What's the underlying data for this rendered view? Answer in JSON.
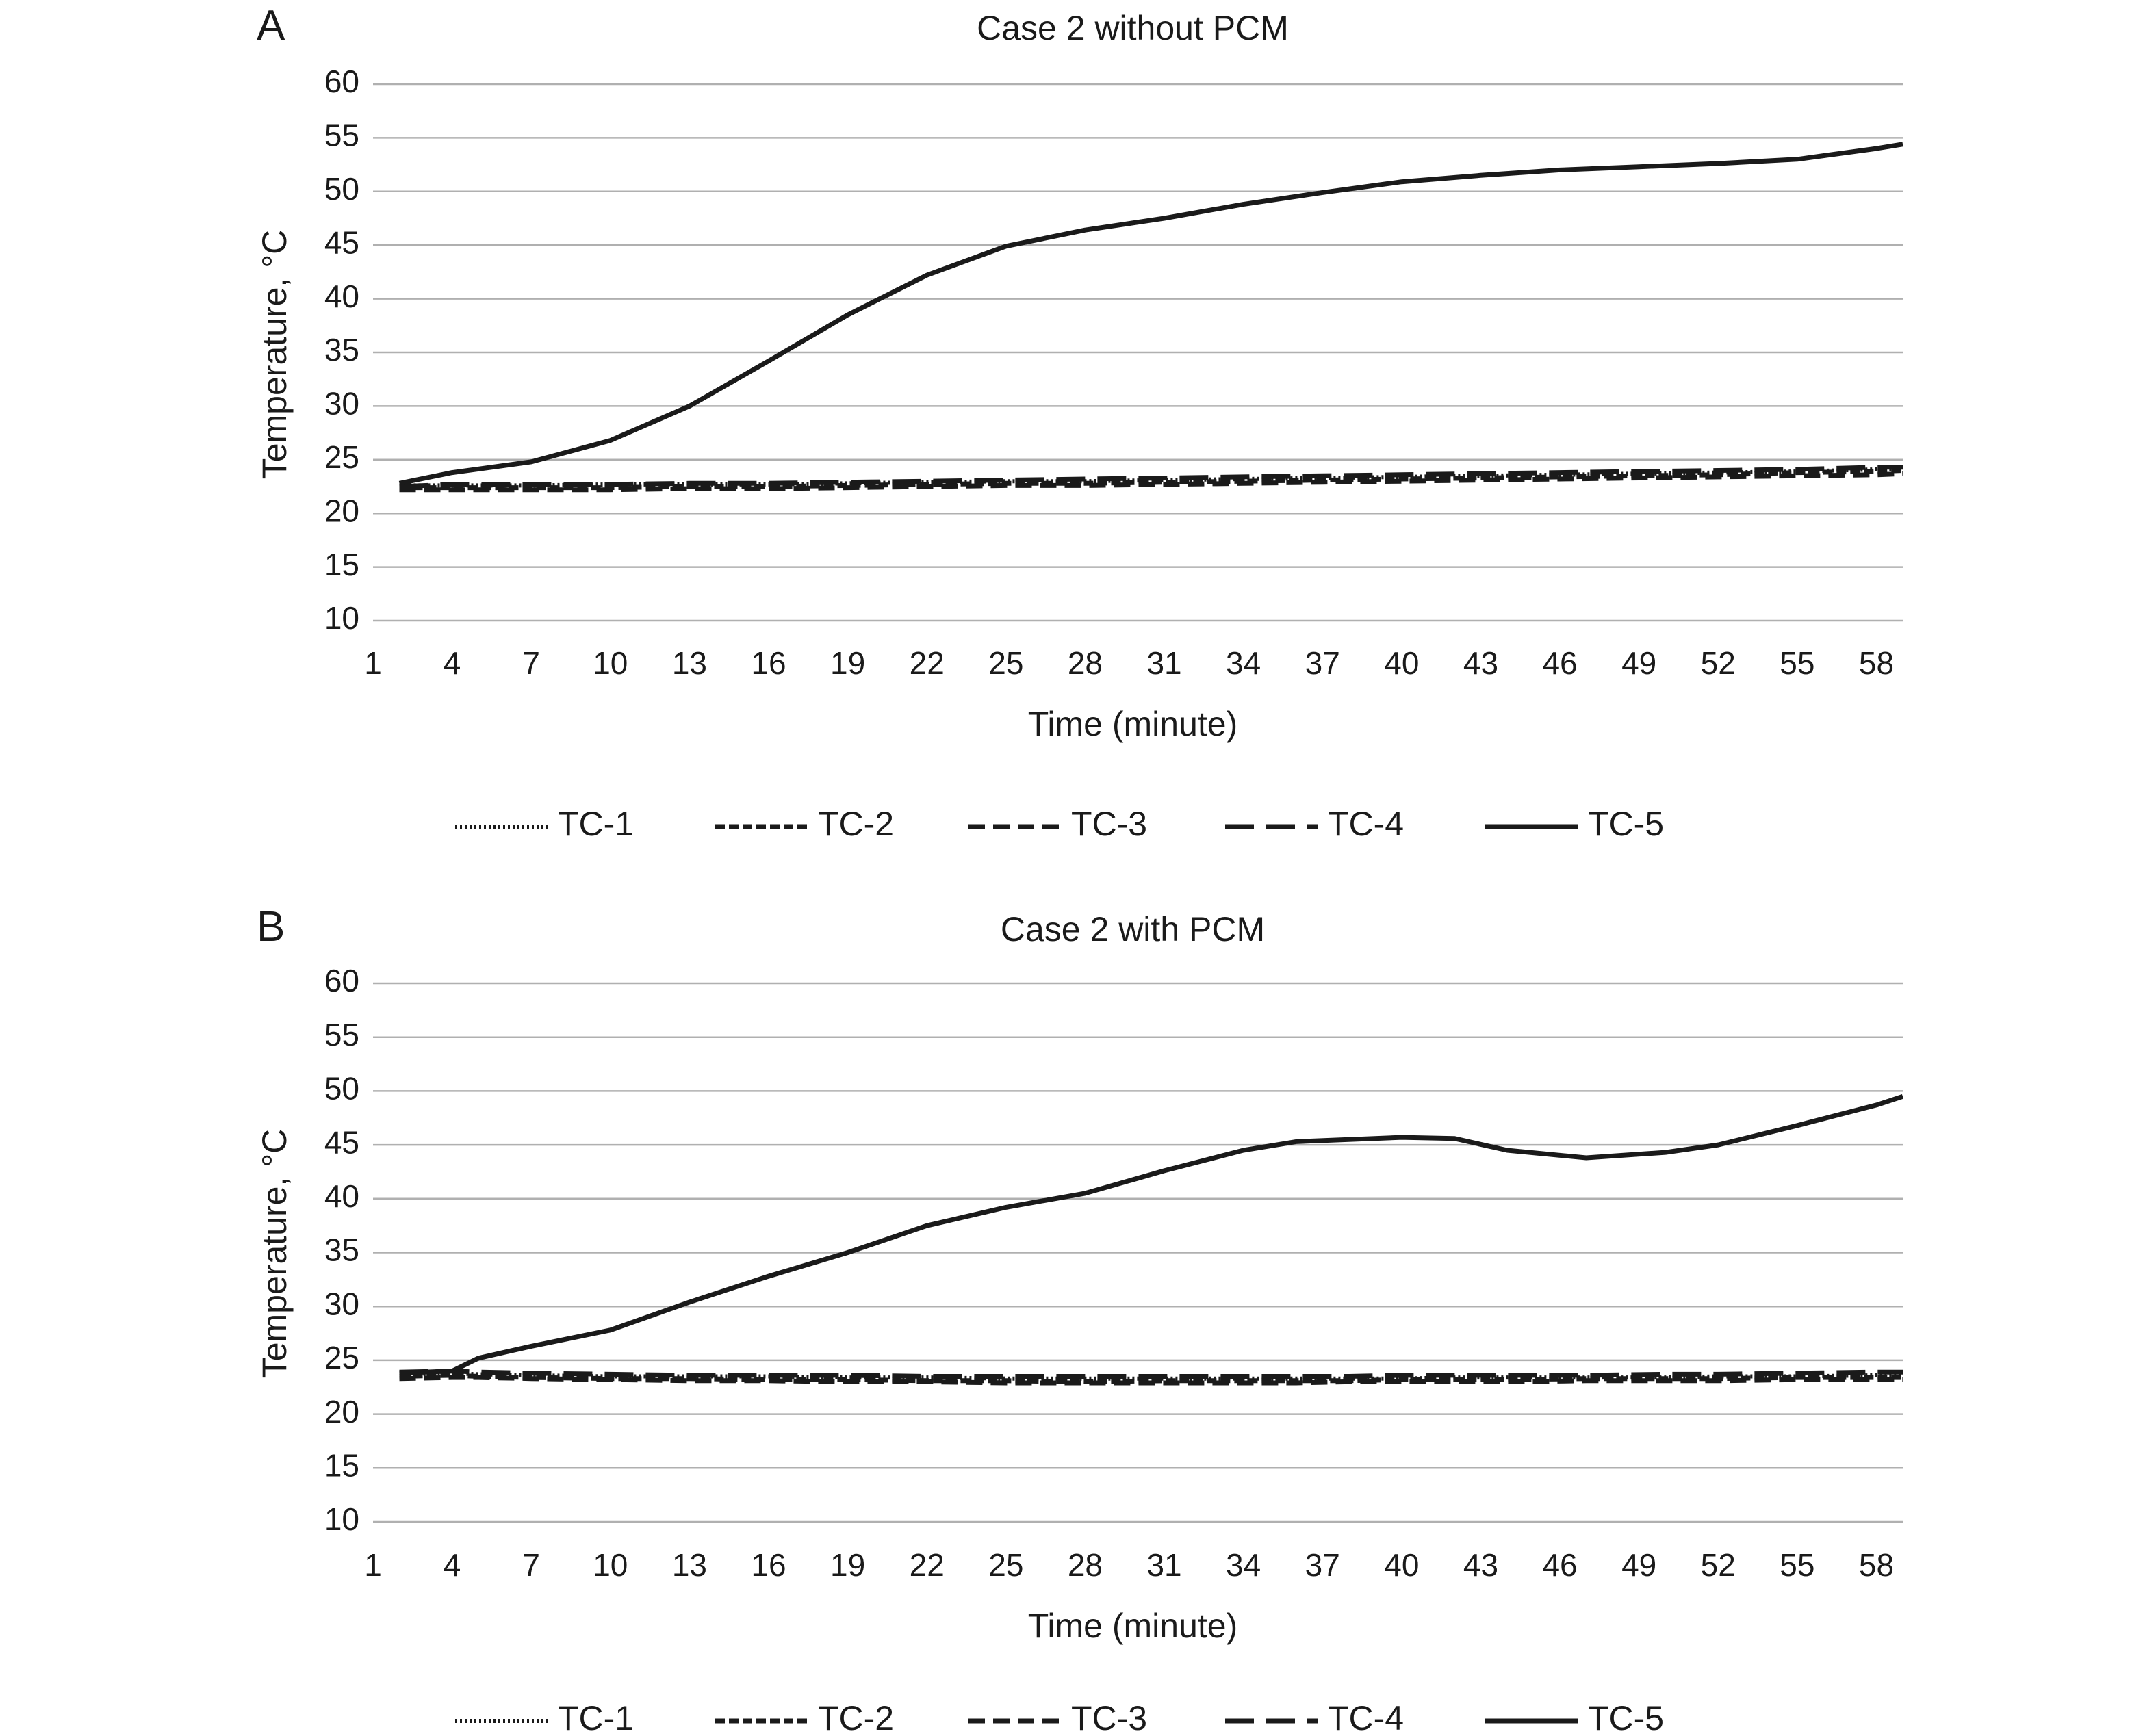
{
  "chart_data": [
    {
      "type": "line",
      "panel_label": "A",
      "title": "Case 2 without PCM",
      "xlabel": "Time (minute)",
      "ylabel": "Temperature, °C",
      "xlim": [
        1,
        59
      ],
      "ylim": [
        10,
        60
      ],
      "x_ticks": [
        1,
        4,
        7,
        10,
        13,
        16,
        19,
        22,
        25,
        28,
        31,
        34,
        37,
        40,
        43,
        46,
        49,
        52,
        55,
        58
      ],
      "y_ticks": [
        10,
        15,
        20,
        25,
        30,
        35,
        40,
        45,
        50,
        55,
        60
      ],
      "grid": true,
      "legend_position": "bottom",
      "x": [
        2,
        4,
        7,
        10,
        13,
        16,
        19,
        22,
        25,
        28,
        31,
        34,
        37,
        40,
        43,
        46,
        49,
        52,
        55,
        58,
        59
      ],
      "series": [
        {
          "name": "TC-1",
          "values": [
            22.6,
            22.6,
            22.6,
            22.7,
            22.7,
            22.7,
            22.8,
            22.9,
            23.0,
            23.0,
            23.1,
            23.2,
            23.3,
            23.4,
            23.5,
            23.6,
            23.7,
            23.8,
            23.9,
            24.1,
            24.1
          ]
        },
        {
          "name": "TC-2",
          "values": [
            22.4,
            22.4,
            22.4,
            22.4,
            22.5,
            22.5,
            22.6,
            22.7,
            22.8,
            22.8,
            22.9,
            23.0,
            23.1,
            23.2,
            23.3,
            23.4,
            23.5,
            23.6,
            23.8,
            23.9,
            24.0
          ]
        },
        {
          "name": "TC-3",
          "values": [
            22.2,
            22.2,
            22.2,
            22.2,
            22.3,
            22.3,
            22.4,
            22.5,
            22.6,
            22.6,
            22.7,
            22.8,
            22.9,
            23.0,
            23.1,
            23.2,
            23.3,
            23.4,
            23.5,
            23.6,
            23.7
          ]
        },
        {
          "name": "TC-4",
          "values": [
            22.5,
            22.7,
            22.7,
            22.7,
            22.8,
            22.8,
            22.9,
            23.0,
            23.1,
            23.2,
            23.3,
            23.4,
            23.5,
            23.6,
            23.7,
            23.8,
            23.9,
            24.0,
            24.1,
            24.3,
            24.3
          ]
        },
        {
          "name": "TC-5",
          "values": [
            22.8,
            23.8,
            24.8,
            26.8,
            30.0,
            34.2,
            38.5,
            42.2,
            44.9,
            46.4,
            47.5,
            48.8,
            49.9,
            50.9,
            51.5,
            52.0,
            52.3,
            52.6,
            53.0,
            54.0,
            54.4
          ]
        }
      ]
    },
    {
      "type": "line",
      "panel_label": "B",
      "title": "Case 2 with PCM",
      "xlabel": "Time (minute)",
      "ylabel": "Temperature, °C",
      "xlim": [
        1,
        59
      ],
      "ylim": [
        10,
        60
      ],
      "x_ticks": [
        1,
        4,
        7,
        10,
        13,
        16,
        19,
        22,
        25,
        28,
        31,
        34,
        37,
        40,
        43,
        46,
        49,
        52,
        55,
        58
      ],
      "y_ticks": [
        10,
        15,
        20,
        25,
        30,
        35,
        40,
        45,
        50,
        55,
        60
      ],
      "grid": true,
      "legend_position": "bottom",
      "x": [
        2,
        4,
        5,
        7,
        10,
        13,
        16,
        19,
        22,
        25,
        28,
        31,
        34,
        36,
        38,
        40,
        42,
        44,
        47,
        50,
        52,
        55,
        58,
        59
      ],
      "series": [
        {
          "name": "TC-1",
          "values": [
            23.7,
            23.8,
            23.7,
            23.6,
            23.5,
            23.5,
            23.5,
            23.4,
            23.4,
            23.3,
            23.3,
            23.3,
            23.3,
            23.3,
            23.3,
            23.3,
            23.4,
            23.4,
            23.4,
            23.4,
            23.5,
            23.5,
            23.6,
            23.6
          ]
        },
        {
          "name": "TC-2",
          "values": [
            23.5,
            23.6,
            23.5,
            23.4,
            23.3,
            23.3,
            23.2,
            23.2,
            23.1,
            23.1,
            23.0,
            23.1,
            23.1,
            23.1,
            23.1,
            23.2,
            23.2,
            23.2,
            23.3,
            23.3,
            23.3,
            23.4,
            23.4,
            23.4
          ]
        },
        {
          "name": "TC-3",
          "values": [
            23.3,
            23.4,
            23.4,
            23.3,
            23.2,
            23.1,
            23.1,
            23.0,
            23.0,
            22.9,
            22.9,
            22.9,
            22.9,
            22.9,
            23.0,
            23.0,
            23.0,
            23.0,
            23.1,
            23.1,
            23.1,
            23.2,
            23.2,
            23.2
          ]
        },
        {
          "name": "TC-4",
          "values": [
            23.9,
            24.0,
            23.9,
            23.8,
            23.7,
            23.6,
            23.6,
            23.6,
            23.5,
            23.5,
            23.5,
            23.5,
            23.5,
            23.5,
            23.5,
            23.6,
            23.6,
            23.6,
            23.6,
            23.7,
            23.7,
            23.8,
            23.9,
            23.9
          ]
        },
        {
          "name": "TC-5",
          "values": [
            23.8,
            24.0,
            25.2,
            26.3,
            27.8,
            30.4,
            32.8,
            35.0,
            37.5,
            39.2,
            40.5,
            42.6,
            44.5,
            45.3,
            45.5,
            45.7,
            45.6,
            44.5,
            43.8,
            44.3,
            45.0,
            46.8,
            48.7,
            49.5
          ]
        }
      ]
    }
  ]
}
